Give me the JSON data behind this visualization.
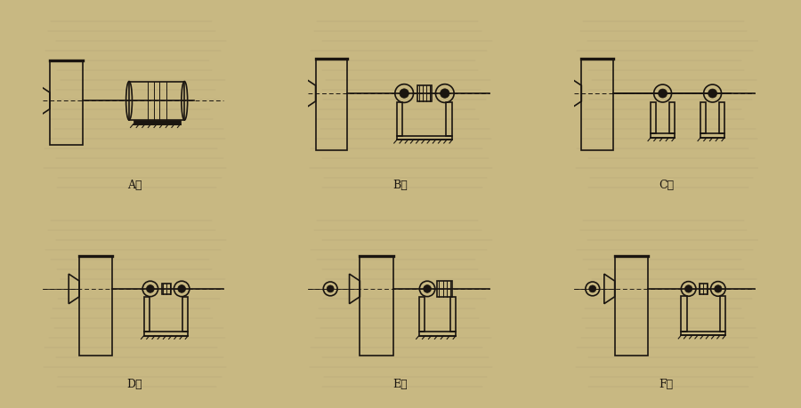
{
  "bg_color": "#c8b882",
  "line_color": "#1a1510",
  "label_fontsize": 9,
  "labels": [
    "A式",
    "B式",
    "C式",
    "D式",
    "E式",
    "F式"
  ],
  "paper_lines_color": "#9a8c6a",
  "subplot_bg": "#c8b882"
}
